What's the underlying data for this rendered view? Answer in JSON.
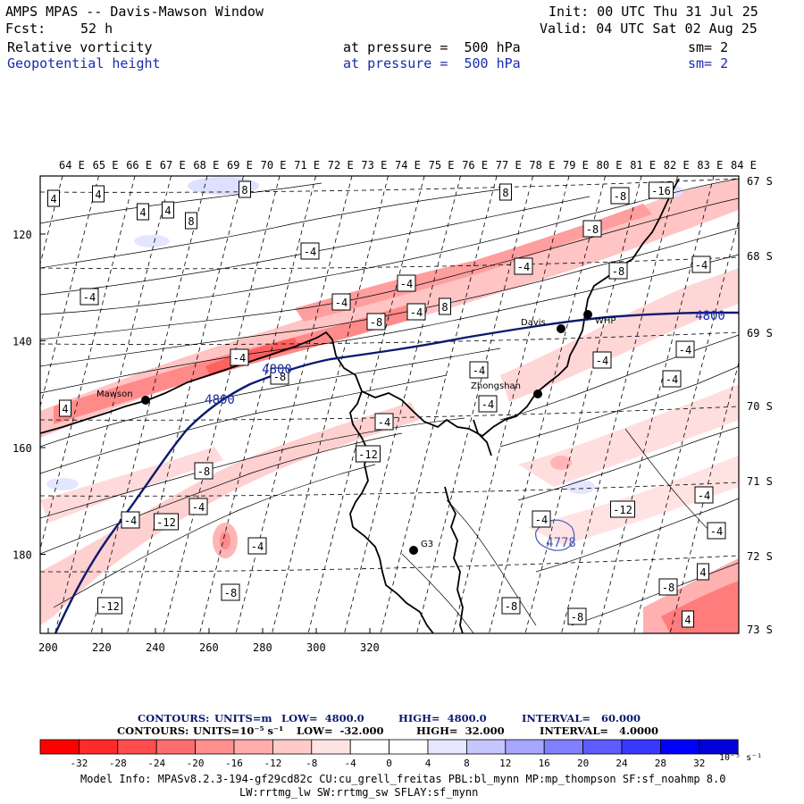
{
  "header": {
    "title": "AMPS MPAS -- Davis-Mawson Window",
    "fcst_label": "Fcst:",
    "fcst_value": "52 h",
    "init": "Init: 00 UTC Thu 31 Jul 25",
    "valid": "Valid: 04 UTC Sat 02 Aug 25",
    "field1": {
      "name": "Relative vorticity",
      "level": "at pressure =  500 hPa",
      "sm": "sm= 2"
    },
    "field2": {
      "name": "Geopotential height",
      "level": "at pressure =  500 hPa",
      "sm": "sm= 2"
    }
  },
  "map": {
    "top_longitudes": [
      "64 E",
      "65 E",
      "66 E",
      "67 E",
      "68 E",
      "69 E",
      "70 E",
      "71 E",
      "72 E",
      "73 E",
      "74 E",
      "75 E",
      "76 E",
      "77 E",
      "78 E",
      "79 E",
      "80 E",
      "81 E",
      "82 E",
      "83 E",
      "84 E"
    ],
    "right_latitudes": [
      "67 S",
      "68 S",
      "69 S",
      "70 S",
      "71 S",
      "72 S",
      "73 S"
    ],
    "bottom_ticks": [
      "200",
      "220",
      "240",
      "260",
      "280",
      "300",
      "320"
    ],
    "left_ticks": [
      "120",
      "140",
      "160",
      "180"
    ],
    "stations": [
      {
        "name": "Mawson"
      },
      {
        "name": "Zhongshan"
      },
      {
        "name": "WHP"
      },
      {
        "name": "Davis"
      },
      {
        "name": "G3"
      }
    ],
    "height_labels": [
      "4800",
      "4800",
      "4800",
      "4778"
    ],
    "vort_labels": [
      "4",
      "4",
      "4",
      "4",
      "8",
      "8",
      "8",
      "-4",
      "-4",
      "-4",
      "-4",
      "-4",
      "-4",
      "-4",
      "-4",
      "-4",
      "-4",
      "-4",
      "-4",
      "-4",
      "-4",
      "-4",
      "-4",
      "-4",
      "-4",
      "-4",
      "-4",
      "-8",
      "-8",
      "-8",
      "-8",
      "-8",
      "-8",
      "-8",
      "-8",
      "-8",
      "-8",
      "-12",
      "-12",
      "-12",
      "-12",
      "-16",
      "4",
      "4",
      "4",
      "8"
    ],
    "colors": {
      "height_contour": "#0a1a6e",
      "coast": "#000000"
    }
  },
  "footer": {
    "contour1": {
      "label": "CONTOURS:",
      "units": "UNITS=m",
      "low": "LOW=  4800.0",
      "high": "HIGH=  4800.0",
      "interval": "INTERVAL=   60.000"
    },
    "contour2": {
      "label": "CONTOURS:",
      "units": "UNITS=10⁻⁵ s⁻¹",
      "low": "LOW=  -32.000",
      "high": "HIGH=  32.000",
      "interval": "INTERVAL=   4.0000"
    },
    "colorbar_labels": [
      "-32",
      "-28",
      "-24",
      "-20",
      "-16",
      "-12",
      "-8",
      "-4",
      "0",
      "4",
      "8",
      "12",
      "16",
      "20",
      "24",
      "28",
      "32"
    ],
    "colorbar_units": "10⁻⁵ s⁻¹",
    "colorbar_colors": [
      "#ff0000",
      "#ff2b2b",
      "#ff4d4d",
      "#ff6e6e",
      "#ff8f8f",
      "#ffadad",
      "#ffcaca",
      "#ffe4e4",
      "#ffffff",
      "#ffffff",
      "#e6e6ff",
      "#c6c6ff",
      "#a6a6ff",
      "#8080ff",
      "#5c5cff",
      "#3838ff",
      "#0000ff",
      "#0000dd"
    ],
    "model_info": "Model Info: MPASv8.2.3-194-gf29cd82c CU:cu_grell_freitas PBL:bl_mynn MP:mp_thompson SF:sf_noahmp 8.0",
    "model_info2": "LW:rrtmg_lw SW:rrtmg_sw SFLAY:sf_mynn"
  }
}
